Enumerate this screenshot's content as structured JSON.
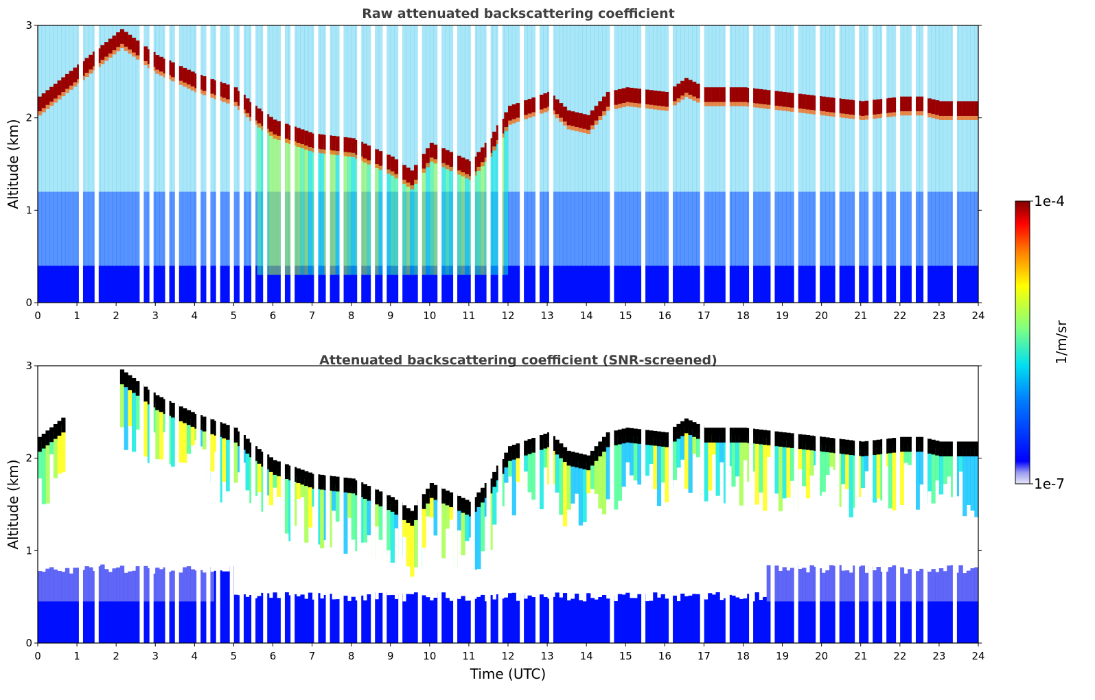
{
  "colorbar": {
    "label": "1/m/sr",
    "min_label": "1e-7",
    "max_label": "1e-4",
    "scale": "log",
    "colormap": "jet"
  },
  "chart_data": [
    {
      "type": "heatmap",
      "title": "Raw attenuated backscattering coefficient",
      "xlabel": "",
      "ylabel": "Altitude (km)",
      "xlim": [
        0,
        24
      ],
      "ylim": [
        0,
        3
      ],
      "x_ticks": [
        "0",
        "1",
        "2",
        "3",
        "4",
        "5",
        "6",
        "7",
        "8",
        "9",
        "10",
        "11",
        "12",
        "13",
        "14",
        "15",
        "16",
        "17",
        "18",
        "19",
        "20",
        "21",
        "22",
        "23",
        "24"
      ],
      "y_ticks": [
        "0",
        "1",
        "2",
        "3"
      ],
      "cloud_top_km": [
        {
          "t": 0,
          "alt": 2.15
        },
        {
          "t": 2.1,
          "alt": 2.88
        },
        {
          "t": 3,
          "alt": 2.6
        },
        {
          "t": 4,
          "alt": 2.4
        },
        {
          "t": 5,
          "alt": 2.25
        },
        {
          "t": 5.5,
          "alt": 2.05
        },
        {
          "t": 6,
          "alt": 1.9
        },
        {
          "t": 7,
          "alt": 1.75
        },
        {
          "t": 8,
          "alt": 1.7
        },
        {
          "t": 9,
          "alt": 1.5
        },
        {
          "t": 9.5,
          "alt": 1.35
        },
        {
          "t": 10,
          "alt": 1.65
        },
        {
          "t": 11,
          "alt": 1.45
        },
        {
          "t": 11.5,
          "alt": 1.7
        },
        {
          "t": 12,
          "alt": 2.05
        },
        {
          "t": 13,
          "alt": 2.2
        },
        {
          "t": 13.5,
          "alt": 2.0
        },
        {
          "t": 14,
          "alt": 1.95
        },
        {
          "t": 14.5,
          "alt": 2.2
        },
        {
          "t": 15,
          "alt": 2.25
        },
        {
          "t": 16,
          "alt": 2.2
        },
        {
          "t": 16.5,
          "alt": 2.35
        },
        {
          "t": 17,
          "alt": 2.25
        },
        {
          "t": 18,
          "alt": 2.25
        },
        {
          "t": 19,
          "alt": 2.2
        },
        {
          "t": 20,
          "alt": 2.15
        },
        {
          "t": 21,
          "alt": 2.1
        },
        {
          "t": 22,
          "alt": 2.15
        },
        {
          "t": 22.5,
          "alt": 2.15
        },
        {
          "t": 23,
          "alt": 2.1
        },
        {
          "t": 24,
          "alt": 2.1
        }
      ]
    },
    {
      "type": "heatmap",
      "title": "Attenuated backscattering coefficient (SNR-screened)",
      "xlabel": "Time (UTC)",
      "ylabel": "Altitude (km)",
      "xlim": [
        0,
        24
      ],
      "ylim": [
        0,
        3
      ],
      "x_ticks": [
        "0",
        "1",
        "2",
        "3",
        "4",
        "5",
        "6",
        "7",
        "8",
        "9",
        "10",
        "11",
        "12",
        "13",
        "14",
        "15",
        "16",
        "17",
        "18",
        "19",
        "20",
        "21",
        "22",
        "23",
        "24"
      ],
      "y_ticks": [
        "0",
        "1",
        "2",
        "3"
      ]
    }
  ]
}
